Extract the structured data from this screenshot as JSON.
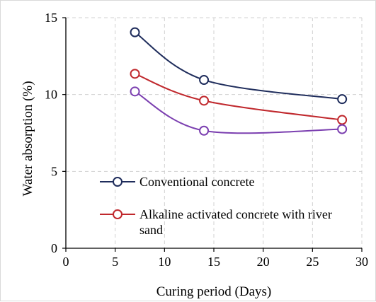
{
  "chart_data": {
    "type": "line",
    "title": "",
    "xlabel": "Curing period (Days)",
    "ylabel": "Water absorption (%)",
    "xlim": [
      0,
      30
    ],
    "ylim": [
      0,
      15
    ],
    "x_ticks": [
      0,
      5,
      10,
      15,
      20,
      25,
      30
    ],
    "y_ticks": [
      0,
      5,
      10,
      15
    ],
    "grid": true,
    "legend": "inside-lower-left",
    "legend_entries": [
      "Conventional concrete",
      "Alkaline activated concrete with river sand"
    ],
    "series": [
      {
        "name": "Conventional concrete",
        "color": "#1f2d5c",
        "marker": "open-circle",
        "x": [
          7,
          14,
          28
        ],
        "y": [
          14.05,
          10.95,
          9.7
        ]
      },
      {
        "name": "Alkaline activated concrete with river sand",
        "color": "#c0282d",
        "marker": "open-circle",
        "x": [
          7,
          14,
          28
        ],
        "y": [
          11.35,
          9.6,
          8.35
        ]
      },
      {
        "name": "",
        "color": "#7b3fb0",
        "marker": "open-circle",
        "x": [
          7,
          14,
          28
        ],
        "y": [
          10.2,
          7.65,
          7.75
        ]
      }
    ]
  }
}
